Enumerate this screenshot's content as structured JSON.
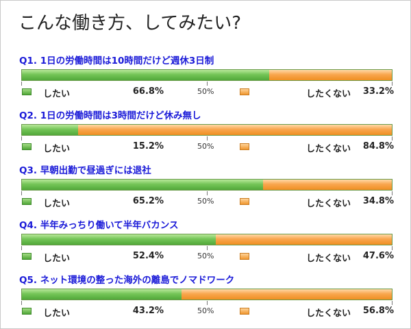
{
  "title": "こんな働き方、してみたい?",
  "midpoint_label": "50%",
  "legend": {
    "yes_label": "したい",
    "no_label": "したくない"
  },
  "colors": {
    "yes": "#6cc04f",
    "no": "#f7a448",
    "question_text": "#1a1ad8"
  },
  "chart_data": {
    "type": "bar",
    "orientation": "horizontal",
    "stacked": true,
    "percent_scale": [
      0,
      100
    ],
    "title": "こんな働き方、してみたい?",
    "series": [
      {
        "name": "したい",
        "color": "#6cc04f"
      },
      {
        "name": "したくない",
        "color": "#f7a448"
      }
    ],
    "questions": [
      {
        "label": "Q1. 1日の労働時間は10時間だけど週休3日制",
        "yes": 66.8,
        "no": 33.2,
        "yes_text": "66.8%",
        "no_text": "33.2%"
      },
      {
        "label": "Q2. 1日の労働時間は3時間だけど休み無し",
        "yes": 15.2,
        "no": 84.8,
        "yes_text": "15.2%",
        "no_text": "84.8%"
      },
      {
        "label": "Q3. 早朝出勤で昼過ぎには退社",
        "yes": 65.2,
        "no": 34.8,
        "yes_text": "65.2%",
        "no_text": "34.8%"
      },
      {
        "label": "Q4. 半年みっちり働いて半年バカンス",
        "yes": 52.4,
        "no": 47.6,
        "yes_text": "52.4%",
        "no_text": "47.6%"
      },
      {
        "label": "Q5. ネット環境の整った海外の離島でノマドワーク",
        "yes": 43.2,
        "no": 56.8,
        "yes_text": "43.2%",
        "no_text": "56.8%"
      }
    ]
  }
}
